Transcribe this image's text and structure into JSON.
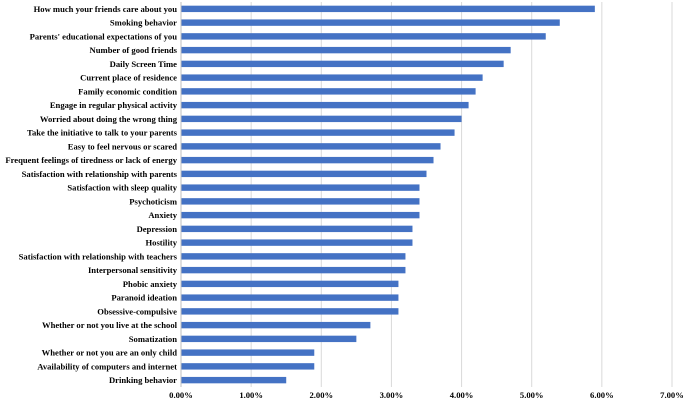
{
  "chart_data": {
    "type": "bar",
    "orientation": "horizontal",
    "categories": [
      "How much your friends care about you",
      "Smoking behavior",
      "Parents' educational expectations of you",
      "Number of good friends",
      "Daily Screen Time",
      "Current place of residence",
      "Family economic condition",
      "Engage in regular physical activity",
      "Worried about doing the wrong thing",
      "Take the initiative to talk to your parents",
      "Easy to feel nervous or scared",
      "Frequent feelings of tiredness or lack of energy",
      "Satisfaction with relationship with parents",
      "Satisfaction with sleep quality",
      "Psychoticism",
      "Anxiety",
      "Depression",
      "Hostility",
      "Satisfaction with relationship with teachers",
      "Interpersonal sensitivity",
      "Phobic anxiety",
      "Paranoid ideation",
      "Obsessive-compulsive",
      "Whether or not you live at the school",
      "Somatization",
      "Whether or not you are an only child",
      "Availability of computers and internet",
      "Drinking behavior"
    ],
    "values": [
      5.9,
      5.4,
      5.2,
      4.7,
      4.6,
      4.3,
      4.2,
      4.1,
      4.0,
      3.9,
      3.7,
      3.6,
      3.5,
      3.4,
      3.4,
      3.4,
      3.3,
      3.3,
      3.2,
      3.2,
      3.1,
      3.1,
      3.1,
      2.7,
      2.5,
      1.9,
      1.9,
      1.5
    ],
    "value_unit": "%",
    "xlim": [
      0,
      7
    ],
    "xticks": [
      "0.00%",
      "1.00%",
      "2.00%",
      "3.00%",
      "4.00%",
      "5.00%",
      "6.00%",
      "7.00%"
    ],
    "grid": true,
    "legend": "none",
    "bar_color": "#4472c4",
    "title": "",
    "xlabel": "",
    "ylabel": ""
  }
}
